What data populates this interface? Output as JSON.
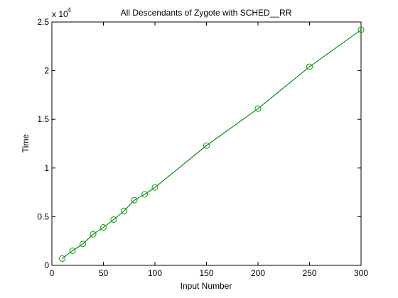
{
  "chart_data": {
    "type": "line",
    "title": "All Descendants of Zygote with SCHED__RR",
    "xlabel": "Input Number",
    "ylabel": "Time",
    "y_exponent_label": "x 10",
    "y_exponent_power": "4",
    "xlim": [
      0,
      300
    ],
    "ylim": [
      0,
      2.5
    ],
    "y_scale_factor": 10000,
    "x_ticks": [
      0,
      50,
      100,
      150,
      200,
      250,
      300
    ],
    "x_tick_labels": [
      "0",
      "50",
      "100",
      "150",
      "200",
      "250",
      "300"
    ],
    "y_ticks": [
      0,
      0.5,
      1,
      1.5,
      2,
      2.5
    ],
    "y_tick_labels": [
      "0",
      "0.5",
      "1",
      "1.5",
      "2",
      "2.5"
    ],
    "grid": false,
    "legend": "none",
    "x": [
      10,
      20,
      30,
      40,
      50,
      60,
      70,
      80,
      90,
      100,
      150,
      200,
      250,
      300
    ],
    "series": [
      {
        "values": [
          0.07,
          0.15,
          0.22,
          0.32,
          0.39,
          0.47,
          0.56,
          0.67,
          0.73,
          0.8,
          1.23,
          1.61,
          2.04,
          2.42
        ],
        "color": "#000080",
        "marker": "none"
      },
      {
        "values": [
          0.07,
          0.15,
          0.22,
          0.32,
          0.39,
          0.47,
          0.56,
          0.67,
          0.73,
          0.8,
          1.23,
          1.61,
          2.04,
          2.42
        ],
        "color": "#00a000",
        "marker": "circle"
      }
    ]
  }
}
